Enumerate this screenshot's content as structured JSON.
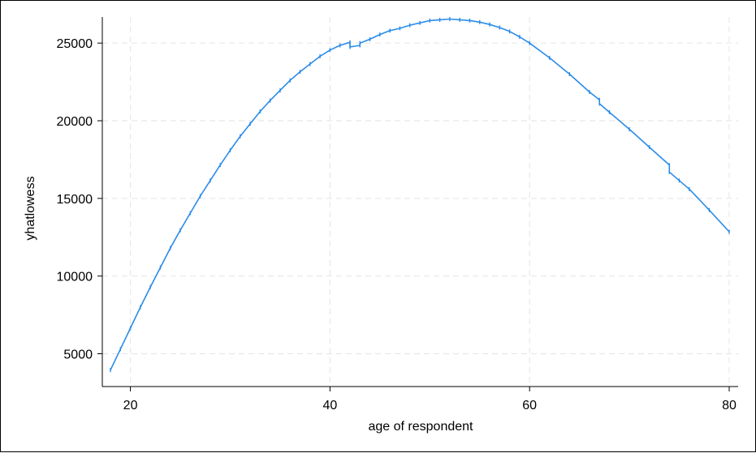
{
  "chart_data": {
    "type": "line",
    "title": "",
    "xlabel": "age of respondent",
    "ylabel": "yhatlowess",
    "xlim": [
      18,
      80
    ],
    "ylim": [
      3200,
      27200
    ],
    "xticks": [
      20,
      40,
      60,
      80
    ],
    "yticks": [
      5000,
      10000,
      15000,
      20000,
      25000
    ],
    "xtick_labels": [
      "20",
      "40",
      "60",
      "80"
    ],
    "ytick_labels": [
      "5000",
      "10000",
      "15000",
      "20000",
      "25000"
    ],
    "grid": true,
    "legend": "none",
    "colors": {
      "line": "#2b8ce8",
      "grid": "#e8e8e8",
      "axis": "#000000"
    },
    "series": [
      {
        "x": [
          18,
          19,
          20,
          21,
          22,
          23,
          24,
          25,
          26,
          27,
          28,
          29,
          30,
          31,
          32,
          33,
          34,
          35,
          36,
          37,
          38,
          39,
          40,
          41,
          42,
          42,
          43,
          43,
          44,
          45,
          46,
          47,
          48,
          49,
          50,
          51,
          52,
          53,
          54,
          55,
          56,
          57,
          58,
          59,
          60,
          62,
          64,
          66,
          67,
          67,
          68,
          70,
          72,
          74,
          74,
          75,
          76,
          78,
          80
        ],
        "y": [
          3950,
          5300,
          6650,
          8000,
          9300,
          10550,
          11800,
          12950,
          14050,
          15150,
          16150,
          17150,
          18100,
          19000,
          19800,
          20600,
          21300,
          21950,
          22600,
          23150,
          23650,
          24150,
          24550,
          24850,
          25050,
          24750,
          24850,
          25000,
          25250,
          25550,
          25800,
          25950,
          26150,
          26300,
          26450,
          26500,
          26550,
          26500,
          26450,
          26350,
          26200,
          26000,
          25750,
          25400,
          25000,
          24050,
          23000,
          21850,
          21350,
          21100,
          20550,
          19450,
          18300,
          17150,
          16700,
          16150,
          15600,
          14250,
          12850
        ]
      }
    ]
  }
}
